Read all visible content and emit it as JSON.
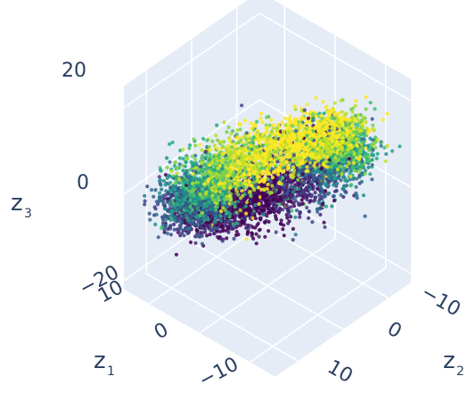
{
  "chart_data": {
    "type": "scatter",
    "subtype": "scatter3d",
    "title": "",
    "colorscale": "viridis",
    "pane_color": "#e5ecf6",
    "grid": true,
    "axes": {
      "x": {
        "label": "z",
        "sub": "1",
        "ticks": [
          "10",
          "0",
          "−10"
        ],
        "range": [
          -15,
          15
        ]
      },
      "y": {
        "label": "z",
        "sub": "2",
        "ticks": [
          "−10",
          "0",
          "10"
        ],
        "range": [
          -15,
          15
        ]
      },
      "z": {
        "label": "z",
        "sub": "3",
        "ticks": [
          "20",
          "0",
          "−20"
        ],
        "range": [
          -22,
          25
        ]
      }
    },
    "ring": {
      "radius": 11.5,
      "height": 4,
      "tilt": 10,
      "spread": 2.4,
      "n_points": 6000,
      "colors": [
        "#440154",
        "#482475",
        "#414487",
        "#355f8d",
        "#2a788e",
        "#21918c",
        "#22a884",
        "#44bf70",
        "#7ad151",
        "#bddf26",
        "#fde725"
      ]
    }
  }
}
